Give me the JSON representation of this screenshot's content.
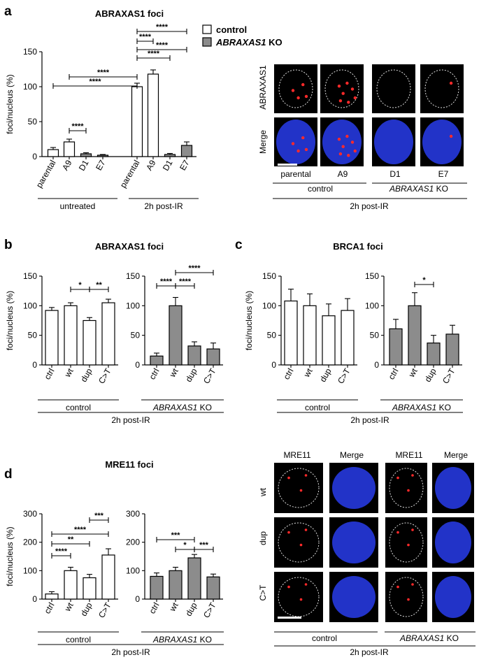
{
  "panel_labels": {
    "a": "a",
    "b": "b",
    "c": "c",
    "d": "d"
  },
  "legend": [
    {
      "label": "control",
      "style": "open",
      "italic": false
    },
    {
      "label": "ABRAXAS1",
      "suffix": " KO",
      "style": "filled",
      "italic": true
    }
  ],
  "colors": {
    "open": "#ffffff",
    "filled": "#8c8c8c",
    "nucleus": "#2233c8",
    "focus": "#ff2a2a",
    "cell_bg": "#000000"
  },
  "common": {
    "ylabel": "foci/nucleus (%)",
    "post_ir": "2h post-IR",
    "control": "control",
    "ko_prefix": "ABRAXAS1",
    "ko_suffix": " KO",
    "untreated": "untreated"
  },
  "chart_data": [
    {
      "id": "a",
      "type": "bar",
      "title": "ABRAXAS1 foci",
      "ylabel": "foci/nucleus (%)",
      "ylim": [
        0,
        150
      ],
      "yticks": [
        0,
        50,
        100,
        150
      ],
      "categories": [
        "parental",
        "A9",
        "D1",
        "E7",
        "parental",
        "A9",
        "D1",
        "E7"
      ],
      "values": [
        10,
        21,
        4,
        2,
        100,
        118,
        3,
        16
      ],
      "errors": [
        3,
        4,
        1.5,
        1,
        5,
        6,
        1.5,
        5
      ],
      "fill": [
        "open",
        "open",
        "filled",
        "filled",
        "open",
        "open",
        "filled",
        "filled"
      ],
      "groups": [
        "untreated",
        "2h post-IR"
      ],
      "significance": [
        "****",
        "****",
        "****",
        "****",
        "****",
        "****",
        "****"
      ]
    },
    {
      "id": "b1",
      "type": "bar",
      "title": "ABRAXAS1 foci",
      "ylabel": "foci/nucleus (%)",
      "ylim": [
        0,
        150
      ],
      "yticks": [
        0,
        50,
        100,
        150
      ],
      "categories": [
        "ctrl",
        "wt",
        "dup",
        "C>T"
      ],
      "values": [
        92,
        100,
        75,
        105
      ],
      "errors": [
        5,
        5,
        5,
        6
      ],
      "fill": "open",
      "significance": [
        "*",
        "**"
      ]
    },
    {
      "id": "b2",
      "type": "bar",
      "ylim": [
        0,
        150
      ],
      "yticks": [
        0,
        50,
        100,
        150
      ],
      "categories": [
        "ctrl",
        "wt",
        "dup",
        "C>T"
      ],
      "values": [
        15,
        100,
        32,
        27
      ],
      "errors": [
        5,
        14,
        7,
        10
      ],
      "fill": "filled",
      "significance": [
        "****",
        "****",
        "****"
      ]
    },
    {
      "id": "c1",
      "type": "bar",
      "title": "BRCA1 foci",
      "ylabel": "foci/nucleus (%)",
      "ylim": [
        0,
        150
      ],
      "yticks": [
        0,
        50,
        100,
        150
      ],
      "categories": [
        "ctrl",
        "wt",
        "dup",
        "C>T"
      ],
      "values": [
        108,
        100,
        83,
        92
      ],
      "errors": [
        20,
        20,
        20,
        20
      ],
      "fill": "open",
      "significance": []
    },
    {
      "id": "c2",
      "type": "bar",
      "ylim": [
        0,
        150
      ],
      "yticks": [
        0,
        50,
        100,
        150
      ],
      "categories": [
        "ctrl",
        "wt",
        "dup",
        "C>T"
      ],
      "values": [
        61,
        100,
        37,
        52
      ],
      "errors": [
        16,
        22,
        13,
        15
      ],
      "fill": "filled",
      "significance": [
        "*"
      ]
    },
    {
      "id": "d1",
      "type": "bar",
      "title": "MRE11 foci",
      "ylabel": "foci/nucleus (%)",
      "ylim": [
        0,
        300
      ],
      "yticks": [
        0,
        100,
        200,
        300
      ],
      "categories": [
        "ctrl",
        "wt",
        "dup",
        "C>T"
      ],
      "values": [
        18,
        100,
        75,
        155
      ],
      "errors": [
        8,
        12,
        12,
        22
      ],
      "fill": "open",
      "significance": [
        "****",
        "**",
        "****",
        "***"
      ]
    },
    {
      "id": "d2",
      "type": "bar",
      "ylim": [
        0,
        300
      ],
      "yticks": [
        0,
        100,
        200,
        300
      ],
      "categories": [
        "ctrl",
        "wt",
        "dup",
        "C>T"
      ],
      "values": [
        80,
        100,
        145,
        78
      ],
      "errors": [
        12,
        12,
        12,
        10
      ],
      "fill": "filled",
      "significance": [
        "***",
        "*",
        "***"
      ]
    }
  ],
  "micro_a": {
    "row_labels": [
      "ABRAXAS1",
      "Merge"
    ],
    "columns": [
      "parental",
      "A9",
      "D1",
      "E7"
    ],
    "control": "control",
    "ko_prefix": "ABRAXAS1",
    "ko_suffix": " KO",
    "post_ir": "2h post-IR"
  },
  "micro_d": {
    "col_labels": [
      "MRE11",
      "Merge",
      "MRE11",
      "Merge"
    ],
    "row_labels": [
      "wt",
      "dup",
      "C>T"
    ],
    "control": "control",
    "ko_prefix": "ABRAXAS1",
    "ko_suffix": " KO",
    "post_ir": "2h post-IR"
  }
}
